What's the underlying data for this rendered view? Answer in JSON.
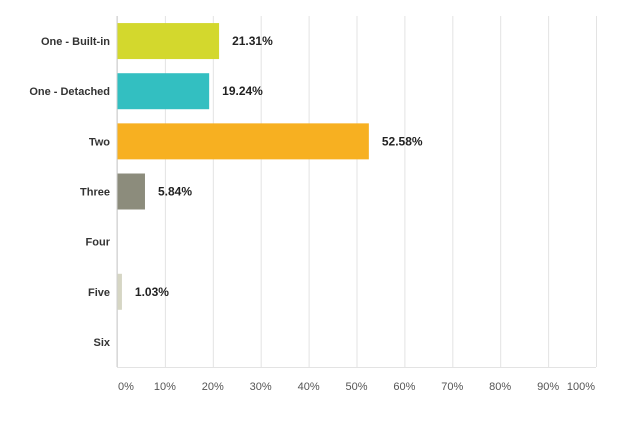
{
  "chart_data": {
    "type": "bar",
    "orientation": "horizontal",
    "categories": [
      "One - Built-in",
      "One - Detached",
      "Two",
      "Three",
      "Four",
      "Five",
      "Six"
    ],
    "values": [
      21.31,
      19.24,
      52.58,
      5.84,
      0,
      1.03,
      0
    ],
    "value_labels": [
      "21.31%",
      "19.24%",
      "52.58%",
      "5.84%",
      "",
      "1.03%",
      ""
    ],
    "bar_colors": [
      "#d3d82d",
      "#33bfc1",
      "#f7b021",
      "#8c8c7c",
      "#cccccc",
      "#d6d6c4",
      "#cccccc"
    ],
    "xlim": [
      0,
      100
    ],
    "x_ticks": [
      "0%",
      "10%",
      "20%",
      "30%",
      "40%",
      "50%",
      "60%",
      "70%",
      "80%",
      "90%",
      "100%"
    ],
    "grid": true,
    "legend": "none",
    "title": "",
    "xlabel": "",
    "ylabel": ""
  }
}
